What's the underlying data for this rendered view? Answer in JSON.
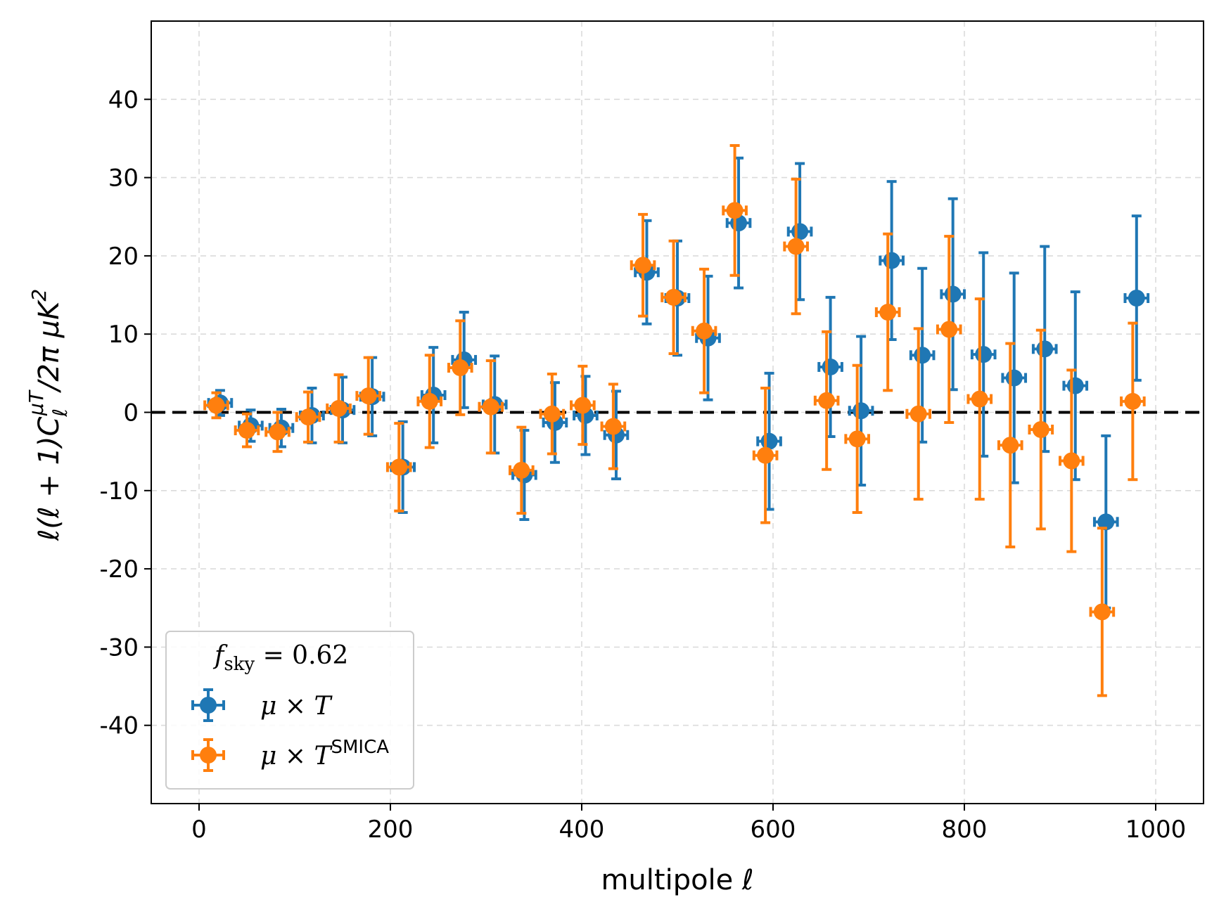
{
  "chart_data": {
    "type": "scatter",
    "xlabel": "multipole ℓ",
    "ylabel": "ℓ(ℓ + 1)C_ℓ^{μT}/2π μK²",
    "xlim": [
      -50,
      1050
    ],
    "ylim": [
      -50,
      50
    ],
    "xticks": [
      0,
      200,
      400,
      600,
      800,
      1000
    ],
    "yticks": [
      -40,
      -30,
      -20,
      -10,
      0,
      10,
      20,
      30,
      40
    ],
    "grid": true,
    "reference_line": 0,
    "legend": {
      "placement": "lower-left",
      "title": "f_sky = 0.62"
    },
    "series": [
      {
        "name": "μ × T",
        "color": "#1f77b4",
        "xerr": 12,
        "points": [
          {
            "x": 22,
            "y": 1.2,
            "yerr": 1.6
          },
          {
            "x": 54,
            "y": -1.7,
            "yerr": 2.0
          },
          {
            "x": 86,
            "y": -2.0,
            "yerr": 2.4
          },
          {
            "x": 118,
            "y": -0.4,
            "yerr": 3.5
          },
          {
            "x": 150,
            "y": 0.3,
            "yerr": 4.2
          },
          {
            "x": 181,
            "y": 2.0,
            "yerr": 5.0
          },
          {
            "x": 213,
            "y": -7.0,
            "yerr": 5.8
          },
          {
            "x": 245,
            "y": 2.2,
            "yerr": 6.1
          },
          {
            "x": 277,
            "y": 6.7,
            "yerr": 6.1
          },
          {
            "x": 309,
            "y": 1.0,
            "yerr": 6.2
          },
          {
            "x": 340,
            "y": -8.0,
            "yerr": 5.7
          },
          {
            "x": 372,
            "y": -1.3,
            "yerr": 5.1
          },
          {
            "x": 404,
            "y": -0.4,
            "yerr": 5.0
          },
          {
            "x": 436,
            "y": -2.9,
            "yerr": 5.6
          },
          {
            "x": 468,
            "y": 17.9,
            "yerr": 6.6
          },
          {
            "x": 500,
            "y": 14.6,
            "yerr": 7.3
          },
          {
            "x": 532,
            "y": 9.5,
            "yerr": 7.9
          },
          {
            "x": 564,
            "y": 24.2,
            "yerr": 8.3
          },
          {
            "x": 596,
            "y": -3.7,
            "yerr": 8.7
          },
          {
            "x": 628,
            "y": 23.1,
            "yerr": 8.7
          },
          {
            "x": 660,
            "y": 5.8,
            "yerr": 8.9
          },
          {
            "x": 692,
            "y": 0.2,
            "yerr": 9.5
          },
          {
            "x": 724,
            "y": 19.4,
            "yerr": 10.1
          },
          {
            "x": 756,
            "y": 7.3,
            "yerr": 11.1
          },
          {
            "x": 788,
            "y": 15.1,
            "yerr": 12.2
          },
          {
            "x": 820,
            "y": 7.4,
            "yerr": 13.0
          },
          {
            "x": 852,
            "y": 4.4,
            "yerr": 13.4
          },
          {
            "x": 884,
            "y": 8.1,
            "yerr": 13.1
          },
          {
            "x": 916,
            "y": 3.4,
            "yerr": 12.0
          },
          {
            "x": 948,
            "y": -14.0,
            "yerr": 11.0
          },
          {
            "x": 980,
            "y": 14.6,
            "yerr": 10.5
          }
        ]
      },
      {
        "name": "μ × T^SMICA",
        "color": "#ff7f0e",
        "xerr": 12,
        "points": [
          {
            "x": 18,
            "y": 0.9,
            "yerr": 1.6
          },
          {
            "x": 50,
            "y": -2.3,
            "yerr": 2.1
          },
          {
            "x": 82,
            "y": -2.5,
            "yerr": 2.5
          },
          {
            "x": 114,
            "y": -0.6,
            "yerr": 3.2
          },
          {
            "x": 146,
            "y": 0.5,
            "yerr": 4.3
          },
          {
            "x": 177,
            "y": 2.1,
            "yerr": 4.9
          },
          {
            "x": 209,
            "y": -7.0,
            "yerr": 5.6
          },
          {
            "x": 241,
            "y": 1.4,
            "yerr": 5.9
          },
          {
            "x": 273,
            "y": 5.7,
            "yerr": 6.0
          },
          {
            "x": 305,
            "y": 0.7,
            "yerr": 5.9
          },
          {
            "x": 337,
            "y": -7.4,
            "yerr": 5.5
          },
          {
            "x": 369,
            "y": -0.2,
            "yerr": 5.1
          },
          {
            "x": 401,
            "y": 0.9,
            "yerr": 5.0
          },
          {
            "x": 433,
            "y": -1.8,
            "yerr": 5.4
          },
          {
            "x": 464,
            "y": 18.8,
            "yerr": 6.5
          },
          {
            "x": 496,
            "y": 14.7,
            "yerr": 7.2
          },
          {
            "x": 528,
            "y": 10.4,
            "yerr": 7.9
          },
          {
            "x": 560,
            "y": 25.8,
            "yerr": 8.3
          },
          {
            "x": 592,
            "y": -5.5,
            "yerr": 8.6
          },
          {
            "x": 624,
            "y": 21.2,
            "yerr": 8.6
          },
          {
            "x": 656,
            "y": 1.5,
            "yerr": 8.8
          },
          {
            "x": 688,
            "y": -3.4,
            "yerr": 9.4
          },
          {
            "x": 720,
            "y": 12.8,
            "yerr": 10.0
          },
          {
            "x": 752,
            "y": -0.2,
            "yerr": 10.9
          },
          {
            "x": 784,
            "y": 10.6,
            "yerr": 11.9
          },
          {
            "x": 816,
            "y": 1.7,
            "yerr": 12.8
          },
          {
            "x": 848,
            "y": -4.2,
            "yerr": 13.0
          },
          {
            "x": 880,
            "y": -2.2,
            "yerr": 12.7
          },
          {
            "x": 912,
            "y": -6.2,
            "yerr": 11.6
          },
          {
            "x": 944,
            "y": -25.5,
            "yerr": 10.7
          },
          {
            "x": 976,
            "y": 1.4,
            "yerr": 10.0
          }
        ]
      }
    ]
  }
}
